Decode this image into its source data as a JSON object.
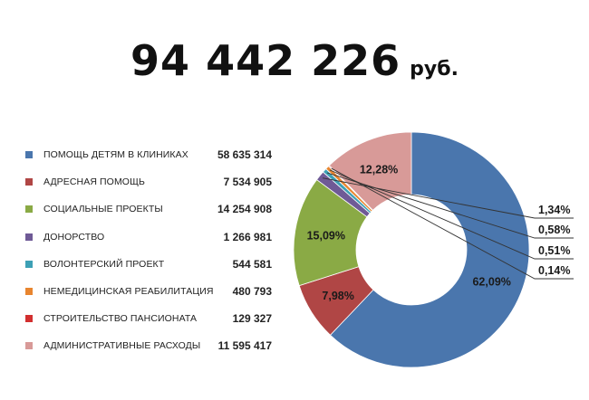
{
  "header": {
    "total_amount": "94 442 226",
    "currency": "руб."
  },
  "chart_data": {
    "type": "pie",
    "variant": "donut",
    "total_label": "94 442 226 руб.",
    "legend_placement": "left",
    "categories": [
      "ПОМОЩЬ ДЕТЯМ В КЛИНИКАХ",
      "АДРЕСНАЯ ПОМОЩЬ",
      "СОЦИАЛЬНЫЕ ПРОЕКТЫ",
      "ДОНОРСТВО",
      "ВОЛОНТЕРСКИЙ ПРОЕКТ",
      "НЕМЕДИЦИНСКАЯ РЕАБИЛИТАЦИЯ",
      "СТРОИТЕЛЬСТВО ПАНСИОНАТА",
      "АДМИНИСТРАТИВНЫЕ РАСХОДЫ"
    ],
    "values": [
      58635314,
      7534905,
      14254908,
      1266981,
      544581,
      480793,
      129327,
      11595417
    ],
    "value_labels": [
      "58 635 314",
      "7 534 905",
      "14 254 908",
      "1 266 981",
      "544 581",
      "480 793",
      "129 327",
      "11 595 417"
    ],
    "percent_labels": [
      "62,09%",
      "7,98%",
      "15,09%",
      "1,34%",
      "0,58%",
      "0,51%",
      "0,14%",
      "12,28%"
    ],
    "colors": [
      "#4a76ad",
      "#b04645",
      "#8aaa45",
      "#6f5a96",
      "#3da0b5",
      "#e8852f",
      "#d22f2f",
      "#d89a98"
    ]
  }
}
